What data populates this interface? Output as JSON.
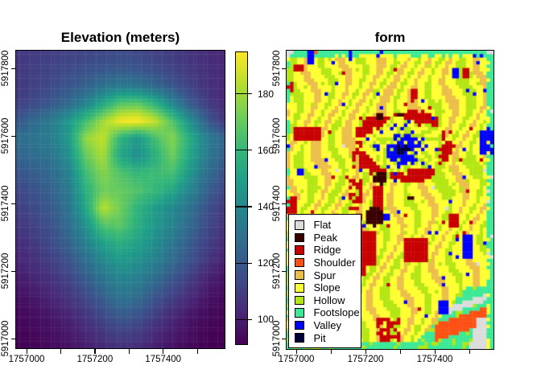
{
  "page": {
    "background": "#FFFFFF"
  },
  "panels": {
    "elevation": {
      "title": "Elevation (meters)"
    },
    "form": {
      "title": "form"
    }
  },
  "axes": {
    "x_tick_values": [
      1757000,
      1757100,
      1757200,
      1757300,
      1757400,
      1757500
    ],
    "x_labeled": [
      {
        "value": 1757000,
        "label": "1757000"
      },
      {
        "value": 1757200,
        "label": "1757200"
      },
      {
        "value": 1757400,
        "label": "1757400"
      }
    ],
    "y_labeled": [
      {
        "value": 5917000,
        "label": "5917000"
      },
      {
        "value": 5917200,
        "label": "5917200"
      },
      {
        "value": 5917400,
        "label": "5917400"
      },
      {
        "value": 5917600,
        "label": "5917600"
      },
      {
        "value": 5917800,
        "label": "5917800"
      }
    ]
  },
  "colorbar": {
    "tick_labels": [
      {
        "value": 100,
        "label": "100"
      },
      {
        "value": 120,
        "label": "120"
      },
      {
        "value": 140,
        "label": "140"
      },
      {
        "value": 160,
        "label": "160"
      },
      {
        "value": 180,
        "label": "180"
      }
    ],
    "value_min": 91,
    "value_max": 195,
    "palette": [
      "#440154",
      "#482878",
      "#3E4A89",
      "#31688E",
      "#26828E",
      "#1F9E89",
      "#35B779",
      "#6DCD59",
      "#B4DE2C",
      "#FDE725"
    ]
  },
  "legend": {
    "items": [
      {
        "label": "Flat",
        "color": "#DCDCDC"
      },
      {
        "label": "Peak",
        "color": "#380000"
      },
      {
        "label": "Ridge",
        "color": "#C80000"
      },
      {
        "label": "Shoulder",
        "color": "#FF5014"
      },
      {
        "label": "Spur",
        "color": "#ECBE4A"
      },
      {
        "label": "Slope",
        "color": "#FFFF32"
      },
      {
        "label": "Hollow",
        "color": "#B4E614"
      },
      {
        "label": "Footslope",
        "color": "#3CE996"
      },
      {
        "label": "Valley",
        "color": "#0000FF"
      },
      {
        "label": "Pit",
        "color": "#000038"
      }
    ]
  },
  "chart_data": [
    {
      "type": "heatmap",
      "title": "Elevation (meters)",
      "units": "meters",
      "x_range": [
        1756970,
        1757580
      ],
      "y_range": [
        5916970,
        5917850
      ],
      "value_range": [
        91,
        195
      ],
      "grid_note": "elevation in meters, 18 rows (N to S) x 13 cols (W to E), bilinearly interpolated; volcanic cone with crater ring ~u0.565 v0.32, secondary summit u0.425 v0.556",
      "grid": [
        [
          108,
          109,
          110,
          111,
          112,
          113,
          114,
          113,
          111,
          109,
          106,
          104,
          102
        ],
        [
          108,
          110,
          112,
          114,
          116,
          118,
          119,
          118,
          115,
          111,
          108,
          105,
          102
        ],
        [
          108,
          111,
          114,
          118,
          123,
          129,
          133,
          131,
          125,
          118,
          111,
          106,
          102
        ],
        [
          110,
          114,
          119,
          126,
          137,
          152,
          166,
          168,
          157,
          138,
          120,
          109,
          103
        ],
        [
          118,
          126,
          134,
          146,
          162,
          180,
          194,
          196,
          186,
          166,
          143,
          120,
          107
        ],
        [
          128,
          131,
          135,
          146,
          178,
          186,
          158,
          146,
          164,
          176,
          155,
          136,
          124
        ],
        [
          124,
          127,
          131,
          142,
          170,
          182,
          152,
          142,
          156,
          172,
          152,
          134,
          122
        ],
        [
          118,
          121,
          126,
          136,
          162,
          176,
          166,
          160,
          162,
          164,
          146,
          128,
          117
        ],
        [
          113,
          117,
          123,
          133,
          156,
          172,
          170,
          166,
          160,
          152,
          138,
          123,
          112
        ],
        [
          110,
          114,
          120,
          130,
          152,
          184,
          172,
          158,
          148,
          140,
          130,
          117,
          108
        ],
        [
          107,
          111,
          117,
          127,
          143,
          166,
          168,
          156,
          146,
          137,
          126,
          114,
          106
        ],
        [
          104,
          108,
          114,
          123,
          136,
          150,
          156,
          150,
          142,
          132,
          121,
          111,
          103
        ],
        [
          101,
          105,
          110,
          117,
          128,
          140,
          147,
          143,
          136,
          127,
          117,
          107,
          100
        ],
        [
          98,
          102,
          106,
          112,
          121,
          131,
          139,
          136,
          128,
          119,
          110,
          101,
          96
        ],
        [
          95,
          98,
          102,
          107,
          114,
          123,
          131,
          128,
          119,
          111,
          104,
          97,
          93
        ],
        [
          93,
          95,
          98,
          102,
          108,
          115,
          122,
          119,
          111,
          104,
          98,
          94,
          92
        ],
        [
          92,
          93,
          95,
          98,
          103,
          108,
          112,
          110,
          104,
          99,
          95,
          92,
          91
        ],
        [
          91,
          92,
          94,
          96,
          99,
          103,
          106,
          104,
          100,
          96,
          93,
          91,
          90
        ]
      ]
    },
    {
      "type": "heatmap",
      "subtype": "categorical",
      "title": "form",
      "classes": [
        "Flat",
        "Peak",
        "Ridge",
        "Shoulder",
        "Spur",
        "Slope",
        "Hollow",
        "Footslope",
        "Valley",
        "Pit"
      ],
      "features": {
        "crater_ring": {
          "center_u": 0.565,
          "center_v": 0.32,
          "radius_u": 0.215,
          "radius_v": 0.105,
          "class": "Ridge"
        },
        "crater_core": {
          "center_u": 0.565,
          "center_v": 0.33,
          "radius_u": 0.085,
          "radius_v": 0.055,
          "classes": [
            "Valley",
            "Pit"
          ]
        },
        "peak_discs": [
          [
            0.447,
            0.218,
            0.02
          ],
          [
            0.551,
            0.212,
            0.013
          ],
          [
            0.425,
            0.556,
            0.046
          ],
          [
            0.455,
            0.425,
            0.034
          ],
          [
            0.598,
            0.497,
            0.014
          ]
        ],
        "ridge_rects": [
          [
            0.03,
            0.255,
            0.165,
            0.3
          ],
          [
            0.0,
            0.487,
            0.045,
            0.548
          ],
          [
            0.355,
            0.6,
            0.435,
            0.725
          ],
          [
            0.56,
            0.625,
            0.69,
            0.71
          ],
          [
            0.79,
            0.552,
            0.838,
            0.592
          ],
          [
            0.592,
            0.125,
            0.632,
            0.163
          ],
          [
            0.855,
            0.062,
            0.878,
            0.095
          ],
          [
            0.005,
            0.105,
            0.032,
            0.142
          ],
          [
            0.34,
            0.725,
            0.375,
            0.76
          ],
          [
            0.42,
            0.455,
            0.47,
            0.53
          ],
          [
            0.038,
            0.042,
            0.075,
            0.068
          ]
        ],
        "ridge_speckle_rects": [
          [
            0.44,
            0.89,
            0.565,
            0.975
          ],
          [
            0.3,
            0.545,
            0.36,
            0.6
          ],
          [
            0.305,
            0.43,
            0.37,
            0.53
          ]
        ],
        "valley_rects": [
          [
            0.938,
            0.262,
            0.972,
            0.348
          ],
          [
            0.855,
            0.612,
            0.898,
            0.7
          ],
          [
            0.728,
            0.832,
            0.788,
            0.888
          ],
          [
            0.095,
            0.0,
            0.128,
            0.048
          ],
          [
            0.292,
            0.0,
            0.318,
            0.03
          ],
          [
            0.8,
            0.062,
            0.825,
            0.095
          ],
          [
            0.47,
            0.545,
            0.495,
            0.575
          ],
          [
            0.058,
            0.395,
            0.08,
            0.42
          ]
        ],
        "border_class": "Footslope",
        "bottom_right": {
          "shoulder_stripe_line": "v = 1.115 - 0.235u",
          "flat_wedge_corner": true,
          "footslope_wedge": "v > 1.45 - 0.75u"
        }
      }
    }
  ]
}
